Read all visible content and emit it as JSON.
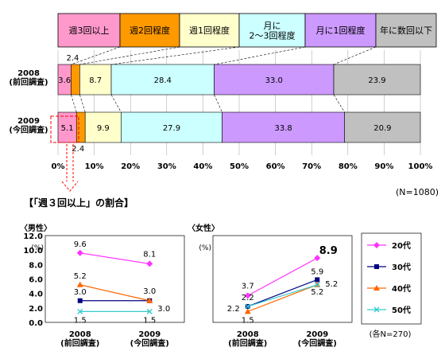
{
  "chart_data": [
    {
      "type": "bar",
      "stacked": true,
      "orientation": "horizontal",
      "legend_position": "top",
      "legend": [
        "週3回以上",
        "週2回程度",
        "週1回程度",
        "月に\n2～3回程度",
        "月に1回程度",
        "年に数回以下"
      ],
      "colors": [
        "#ff99cc",
        "#ff9900",
        "#ffffcc",
        "#ccffff",
        "#cc99ff",
        "#c0c0c0"
      ],
      "rows": [
        {
          "label": "2008\n(前回調査)",
          "values": [
            3.6,
            2.4,
            8.7,
            28.4,
            33.0,
            23.9
          ],
          "value_labels": [
            "3.6",
            "2.4",
            "8.7",
            "28.4",
            "33.0",
            "23.9"
          ]
        },
        {
          "label": "2009\n(今回調査)",
          "values": [
            5.1,
            2.4,
            9.9,
            27.9,
            33.8,
            20.9
          ],
          "value_labels": [
            "5.1",
            "2.4",
            "9.9",
            "27.9",
            "33.8",
            "20.9"
          ]
        }
      ],
      "x_ticks": [
        "0%",
        "10%",
        "20%",
        "30%",
        "40%",
        "50%",
        "60%",
        "70%",
        "80%",
        "90%",
        "100%"
      ],
      "xlim": [
        0,
        100
      ],
      "note": "(N=1080)"
    },
    {
      "type": "line",
      "title": "〈男性〉",
      "ylabel": "(%)",
      "ylim": [
        0,
        12
      ],
      "y_ticks": [
        "0.0",
        "2.0",
        "4.0",
        "6.0",
        "8.0",
        "10.0",
        "12.0"
      ],
      "categories": [
        "2008\n(前回調査)",
        "2009\n(今回調査)"
      ],
      "series": [
        {
          "name": "20代",
          "values": [
            9.6,
            8.1
          ],
          "labels": [
            "9.6",
            "8.1"
          ]
        },
        {
          "name": "30代",
          "values": [
            3.0,
            3.0
          ],
          "labels": [
            "3.0",
            "3.0"
          ]
        },
        {
          "name": "40代",
          "values": [
            5.2,
            3.0
          ],
          "labels": [
            "5.2",
            "3.0"
          ]
        },
        {
          "name": "50代",
          "values": [
            1.5,
            1.5
          ],
          "labels": [
            "1.5",
            "1.5"
          ]
        }
      ]
    },
    {
      "type": "line",
      "title": "〈女性〉",
      "ylabel": "(%)",
      "categories": [
        "2008\n(前回調査)",
        "2009\n(今回調査)"
      ],
      "series": [
        {
          "name": "20代",
          "values": [
            3.7,
            8.9
          ],
          "labels": [
            "3.7",
            "8.9"
          ]
        },
        {
          "name": "30代",
          "values": [
            2.2,
            5.9
          ],
          "labels": [
            "2.2",
            "5.9"
          ]
        },
        {
          "name": "40代",
          "values": [
            1.5,
            5.2
          ],
          "labels": [
            "1.5",
            "5.2"
          ]
        },
        {
          "name": "50代",
          "values": [
            2.2,
            5.2
          ],
          "labels": [
            "2.2",
            "5.2"
          ]
        }
      ],
      "legend": [
        "20代",
        "30代",
        "40代",
        "50代"
      ],
      "note": "(各N=270)"
    }
  ],
  "section_title": "【「週３回以上」の割合】",
  "series_colors": {
    "20代": "#ff33ff",
    "30代": "#000080",
    "40代": "#ff6600",
    "50代": "#33cccc"
  }
}
